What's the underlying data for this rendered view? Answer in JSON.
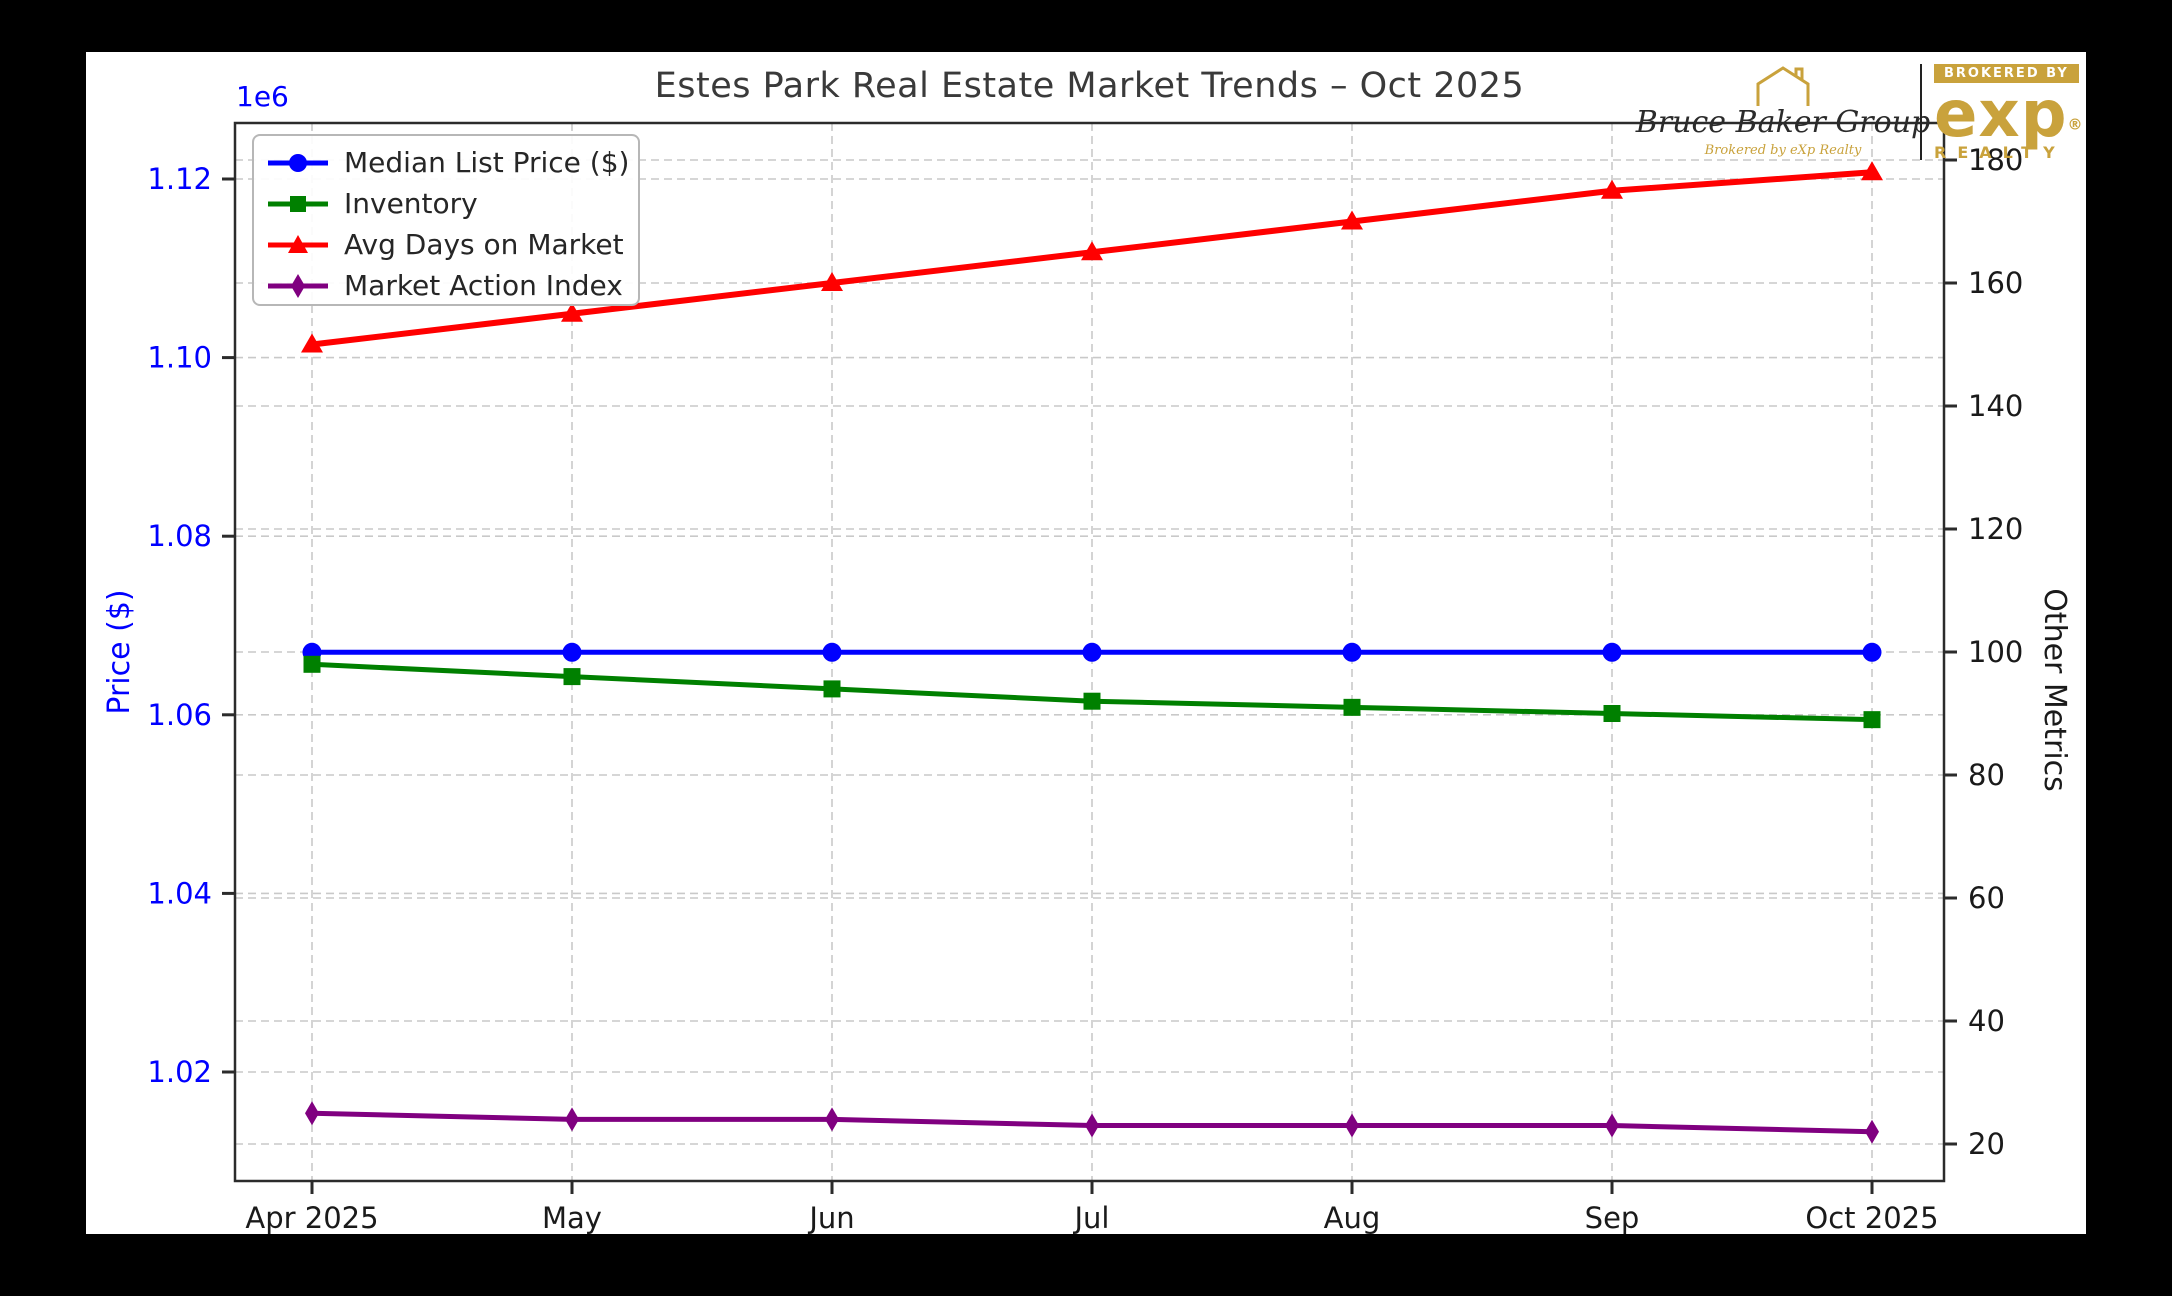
{
  "header": {
    "title": "Estes Park Real Estate Market Trends – Oct 2025"
  },
  "branding": {
    "group_name": "Bruce Baker Group",
    "group_tagline": "Brokered by eXp Realty",
    "banner": "BROKERED BY",
    "brand_word": "exp",
    "registered_mark": "®",
    "brand_sub": "REALTY",
    "gold_color": "#c9a23c",
    "house_icon": "house-outline"
  },
  "chart_data": {
    "type": "line",
    "title": "Estes Park Real Estate Market Trends – Oct 2025",
    "x_categories": [
      "Apr 2025",
      "May",
      "Jun",
      "Jul",
      "Aug",
      "Sep",
      "Oct 2025"
    ],
    "grid": true,
    "legend_position": "upper-left",
    "left_axis": {
      "label": "Price ($)",
      "offset_label": "1e6",
      "color": "#0000ff",
      "tick_labels": [
        "1.02",
        "1.04",
        "1.06",
        "1.08",
        "1.10",
        "1.12"
      ],
      "tick_values": [
        1020000,
        1040000,
        1060000,
        1080000,
        1100000,
        1120000
      ],
      "range": [
        1007800,
        1126300
      ]
    },
    "right_axis": {
      "label": "Other Metrics",
      "color": "#1a1a1a",
      "tick_values": [
        20,
        40,
        60,
        80,
        100,
        120,
        140,
        160,
        180
      ],
      "range": [
        14,
        186
      ]
    },
    "series": [
      {
        "name": "Median List Price ($)",
        "axis": "left",
        "color": "#0000ff",
        "marker": "circle",
        "values": [
          1067000,
          1067000,
          1067000,
          1067000,
          1067000,
          1067000,
          1067000
        ]
      },
      {
        "name": "Inventory",
        "axis": "right",
        "color": "#008000",
        "marker": "square",
        "values": [
          98,
          96,
          94,
          92,
          91,
          90,
          89
        ]
      },
      {
        "name": "Avg Days on Market",
        "axis": "right",
        "color": "#ff0000",
        "marker": "triangle",
        "values": [
          150,
          155,
          160,
          165,
          170,
          175,
          178
        ]
      },
      {
        "name": "Market Action Index",
        "axis": "right",
        "color": "#800080",
        "marker": "diamond",
        "values": [
          25,
          24,
          24,
          23,
          23,
          23,
          22
        ]
      }
    ]
  }
}
